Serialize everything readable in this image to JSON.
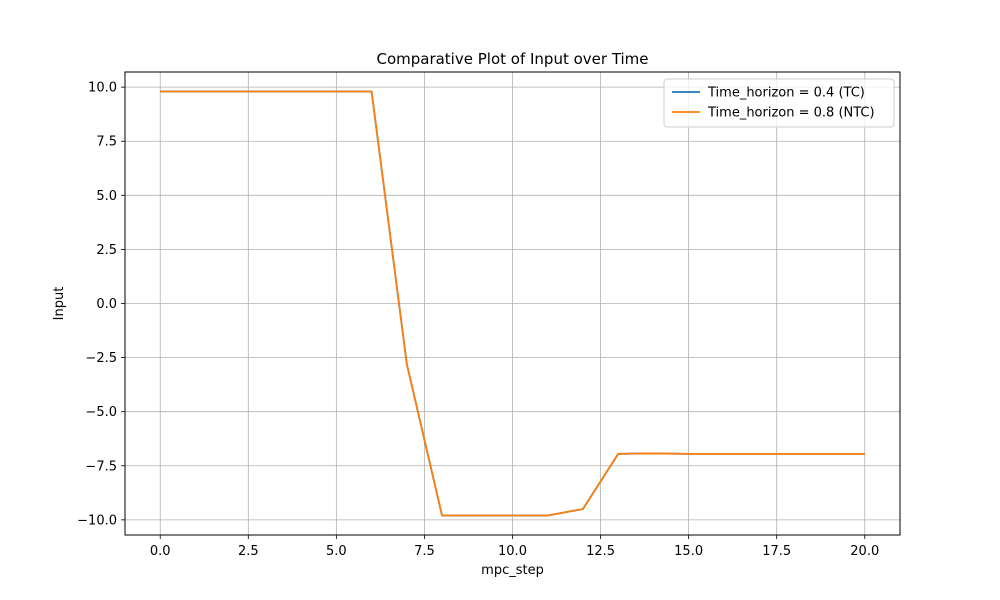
{
  "chart_data": {
    "type": "line",
    "title": "Comparative Plot of Input over Time",
    "xlabel": "mpc_step",
    "ylabel": "Input",
    "xlim": [
      -1.0,
      21.0
    ],
    "ylim": [
      -10.7,
      10.7
    ],
    "xticks": [
      0.0,
      2.5,
      5.0,
      7.5,
      10.0,
      12.5,
      15.0,
      17.5,
      20.0
    ],
    "xtick_labels": [
      "0.0",
      "2.5",
      "5.0",
      "7.5",
      "10.0",
      "12.5",
      "15.0",
      "17.5",
      "20.0"
    ],
    "yticks": [
      10.0,
      7.5,
      5.0,
      2.5,
      0.0,
      -2.5,
      -5.0,
      -7.5,
      -10.0
    ],
    "ytick_labels": [
      "10.0",
      "7.5",
      "5.0",
      "2.5",
      "0.0",
      "−2.5",
      "−5.0",
      "−7.5",
      "−10.0"
    ],
    "grid": true,
    "legend_position": "top-right",
    "x": [
      0,
      1,
      2,
      3,
      4,
      5,
      6,
      7,
      8,
      9,
      10,
      11,
      12,
      13,
      14,
      15,
      16,
      17,
      18,
      19,
      20
    ],
    "series": [
      {
        "name": "Time_horizon = 0.4 (TC)",
        "color": "#1f77b4",
        "values": [
          9.8,
          9.8,
          9.8,
          9.8,
          9.8,
          9.8,
          9.8,
          -2.8,
          -9.8,
          -9.8,
          -9.8,
          -9.8,
          -9.5,
          -6.95,
          -6.93,
          -6.95,
          -6.95,
          -6.95,
          -6.95,
          -6.95,
          -6.95
        ]
      },
      {
        "name": "Time_horizon = 0.8 (NTC)",
        "color": "#ff7f0e",
        "values": [
          9.8,
          9.8,
          9.8,
          9.8,
          9.8,
          9.8,
          9.8,
          -2.8,
          -9.8,
          -9.8,
          -9.8,
          -9.8,
          -9.5,
          -6.95,
          -6.93,
          -6.95,
          -6.95,
          -6.95,
          -6.95,
          -6.95,
          -6.95
        ]
      }
    ]
  }
}
